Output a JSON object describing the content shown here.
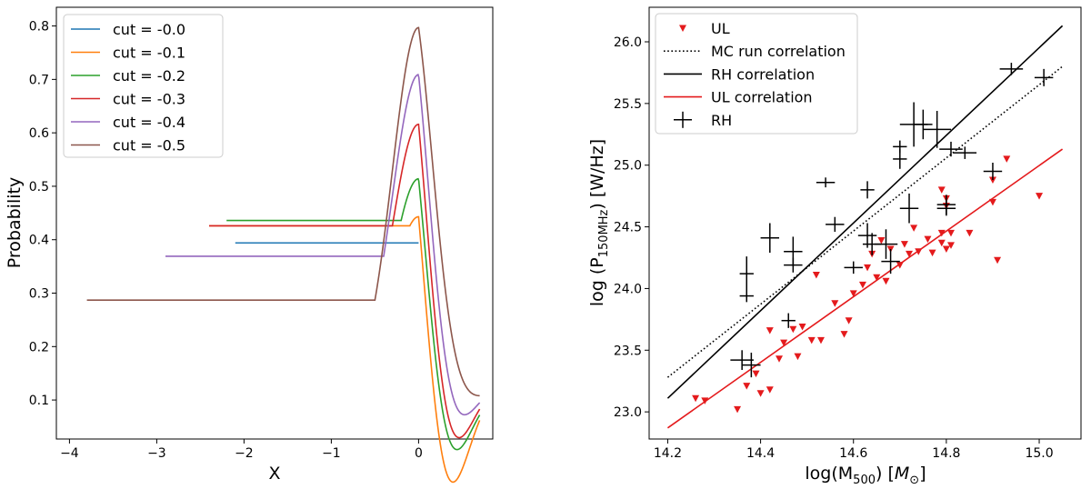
{
  "chart_data": [
    {
      "type": "line",
      "xlabel": "X",
      "ylabel": "Probability",
      "xlim": [
        -4.15,
        0.85
      ],
      "ylim": [
        0.027,
        0.835
      ],
      "xticks": [
        -4,
        -3,
        -2,
        -1,
        0
      ],
      "xtick_labels": [
        "−4",
        "−3",
        "−2",
        "−1",
        "0"
      ],
      "yticks": [
        0.1,
        0.2,
        0.3,
        0.4,
        0.5,
        0.6,
        0.7,
        0.8
      ],
      "ytick_labels": [
        "0.1",
        "0.2",
        "0.3",
        "0.4",
        "0.5",
        "0.6",
        "0.7",
        "0.8"
      ],
      "legend": "top-left",
      "grid": false,
      "x_end": 0.7,
      "series": [
        {
          "name": "cut = -0.0",
          "color": "#1f77b4",
          "x_start": -2.1,
          "plateau": 0.394,
          "x_break": 0.0,
          "peak": 0.394,
          "end": 0.053
        },
        {
          "name": "cut = -0.1",
          "color": "#ff7f0e",
          "x_start": -2.4,
          "plateau": 0.426,
          "x_break": -0.1,
          "peak": 0.443,
          "end": 0.062
        },
        {
          "name": "cut = -0.2",
          "color": "#2ca02c",
          "x_start": -2.2,
          "plateau": 0.436,
          "x_break": -0.2,
          "peak": 0.514,
          "end": 0.072
        },
        {
          "name": "cut = -0.3",
          "color": "#d62728",
          "x_start": -2.4,
          "plateau": 0.426,
          "x_break": -0.3,
          "peak": 0.616,
          "end": 0.083
        },
        {
          "name": "cut = -0.4",
          "color": "#9467bd",
          "x_start": -2.9,
          "plateau": 0.369,
          "x_break": -0.4,
          "peak": 0.709,
          "end": 0.095
        },
        {
          "name": "cut = -0.5",
          "color": "#8c564b",
          "x_start": -3.8,
          "plateau": 0.287,
          "x_break": -0.5,
          "peak": 0.797,
          "end": 0.108
        }
      ]
    },
    {
      "type": "scatter",
      "xlabel": "log(M500) [M⊙]",
      "ylabel": "log (P150MHz) [W/Hz]",
      "xlim": [
        14.16,
        15.09
      ],
      "ylim": [
        22.78,
        26.28
      ],
      "xticks": [
        14.2,
        14.4,
        14.6,
        14.8,
        15.0
      ],
      "xtick_labels": [
        "14.2",
        "14.4",
        "14.6",
        "14.8",
        "15.0"
      ],
      "yticks": [
        23.0,
        23.5,
        24.0,
        24.5,
        25.0,
        25.5,
        26.0
      ],
      "ytick_labels": [
        "23.0",
        "23.5",
        "24.0",
        "24.5",
        "25.0",
        "25.5",
        "26.0"
      ],
      "legend": "top-left",
      "grid": false,
      "lines": [
        {
          "name": "MC run correlation",
          "color": "#000000",
          "style": "dotted",
          "x": [
            14.2,
            15.05
          ],
          "y": [
            23.28,
            25.8
          ]
        },
        {
          "name": "RH correlation",
          "color": "#000000",
          "style": "solid",
          "x": [
            14.2,
            15.05
          ],
          "y": [
            23.11,
            26.13
          ]
        },
        {
          "name": "UL correlation",
          "color": "#e41a1c",
          "style": "solid",
          "x": [
            14.2,
            15.05
          ],
          "y": [
            22.87,
            25.13
          ]
        }
      ],
      "ul_series": {
        "name": "UL",
        "color": "#e41a1c",
        "points": [
          [
            14.26,
            23.11
          ],
          [
            14.28,
            23.09
          ],
          [
            14.35,
            23.02
          ],
          [
            14.37,
            23.21
          ],
          [
            14.39,
            23.31
          ],
          [
            14.4,
            23.15
          ],
          [
            14.42,
            23.18
          ],
          [
            14.42,
            23.66
          ],
          [
            14.44,
            23.43
          ],
          [
            14.45,
            23.56
          ],
          [
            14.47,
            23.67
          ],
          [
            14.48,
            23.45
          ],
          [
            14.49,
            23.69
          ],
          [
            14.51,
            23.58
          ],
          [
            14.52,
            24.11
          ],
          [
            14.53,
            23.58
          ],
          [
            14.56,
            23.88
          ],
          [
            14.58,
            23.63
          ],
          [
            14.59,
            23.74
          ],
          [
            14.6,
            23.96
          ],
          [
            14.62,
            24.03
          ],
          [
            14.63,
            24.17
          ],
          [
            14.64,
            24.28
          ],
          [
            14.65,
            24.09
          ],
          [
            14.66,
            24.39
          ],
          [
            14.67,
            24.06
          ],
          [
            14.68,
            24.32
          ],
          [
            14.7,
            24.19
          ],
          [
            14.71,
            24.36
          ],
          [
            14.72,
            24.28
          ],
          [
            14.73,
            24.49
          ],
          [
            14.74,
            24.3
          ],
          [
            14.76,
            24.4
          ],
          [
            14.77,
            24.29
          ],
          [
            14.79,
            24.37
          ],
          [
            14.79,
            24.45
          ],
          [
            14.8,
            24.73
          ],
          [
            14.8,
            24.32
          ],
          [
            14.81,
            24.45
          ],
          [
            14.79,
            24.8
          ],
          [
            14.8,
            24.67
          ],
          [
            14.85,
            24.45
          ],
          [
            14.9,
            24.7
          ],
          [
            14.9,
            24.88
          ],
          [
            14.91,
            24.23
          ],
          [
            14.93,
            25.05
          ],
          [
            15.0,
            24.75
          ],
          [
            14.81,
            24.35
          ]
        ]
      },
      "rh_series": {
        "name": "RH",
        "color": "#000000",
        "points": [
          {
            "x": 14.37,
            "y": 24.12,
            "ex": 0.015,
            "ey": 0.14
          },
          {
            "x": 14.37,
            "y": 23.94,
            "ex": 0.015,
            "ey": 0.05
          },
          {
            "x": 14.36,
            "y": 23.42,
            "ex": 0.025,
            "ey": 0.08
          },
          {
            "x": 14.38,
            "y": 23.38,
            "ex": 0.02,
            "ey": 0.1
          },
          {
            "x": 14.42,
            "y": 24.41,
            "ex": 0.02,
            "ey": 0.12
          },
          {
            "x": 14.46,
            "y": 23.74,
            "ex": 0.015,
            "ey": 0.06
          },
          {
            "x": 14.47,
            "y": 24.3,
            "ex": 0.02,
            "ey": 0.12
          },
          {
            "x": 14.47,
            "y": 24.19,
            "ex": 0.02,
            "ey": 0.06
          },
          {
            "x": 14.54,
            "y": 24.86,
            "ex": 0.02,
            "ey": 0.04
          },
          {
            "x": 14.56,
            "y": 24.52,
            "ex": 0.02,
            "ey": 0.06
          },
          {
            "x": 14.6,
            "y": 24.17,
            "ex": 0.02,
            "ey": 0.05
          },
          {
            "x": 14.63,
            "y": 24.8,
            "ex": 0.015,
            "ey": 0.07
          },
          {
            "x": 14.63,
            "y": 24.43,
            "ex": 0.02,
            "ey": 0.1
          },
          {
            "x": 14.64,
            "y": 24.36,
            "ex": 0.02,
            "ey": 0.09
          },
          {
            "x": 14.67,
            "y": 24.36,
            "ex": 0.025,
            "ey": 0.12
          },
          {
            "x": 14.68,
            "y": 24.22,
            "ex": 0.02,
            "ey": 0.1
          },
          {
            "x": 14.7,
            "y": 25.05,
            "ex": 0.015,
            "ey": 0.08
          },
          {
            "x": 14.7,
            "y": 25.15,
            "ex": 0.015,
            "ey": 0.05
          },
          {
            "x": 14.72,
            "y": 24.65,
            "ex": 0.02,
            "ey": 0.12
          },
          {
            "x": 14.73,
            "y": 25.33,
            "ex": 0.03,
            "ey": 0.18
          },
          {
            "x": 14.75,
            "y": 25.33,
            "ex": 0.02,
            "ey": 0.12
          },
          {
            "x": 14.78,
            "y": 25.29,
            "ex": 0.03,
            "ey": 0.15
          },
          {
            "x": 14.8,
            "y": 24.68,
            "ex": 0.02,
            "ey": 0.08
          },
          {
            "x": 14.8,
            "y": 24.65,
            "ex": 0.02,
            "ey": 0.06
          },
          {
            "x": 14.81,
            "y": 25.13,
            "ex": 0.025,
            "ey": 0.06
          },
          {
            "x": 14.84,
            "y": 25.1,
            "ex": 0.025,
            "ey": 0.05
          },
          {
            "x": 14.9,
            "y": 24.95,
            "ex": 0.02,
            "ey": 0.07
          },
          {
            "x": 14.94,
            "y": 25.78,
            "ex": 0.025,
            "ey": 0.05
          },
          {
            "x": 15.01,
            "y": 25.71,
            "ex": 0.02,
            "ey": 0.07
          }
        ]
      }
    }
  ]
}
